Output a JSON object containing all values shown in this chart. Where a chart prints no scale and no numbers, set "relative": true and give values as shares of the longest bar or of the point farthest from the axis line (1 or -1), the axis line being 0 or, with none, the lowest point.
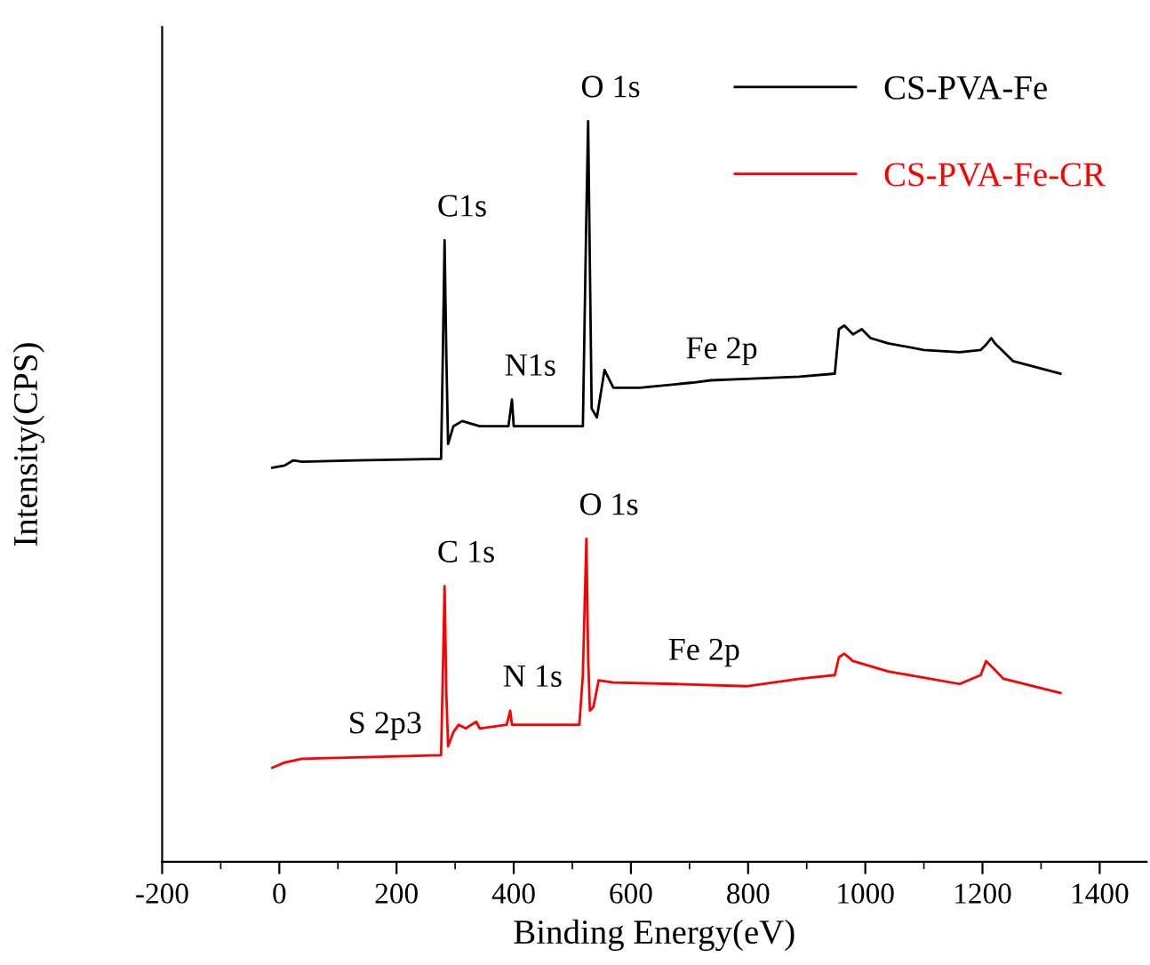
{
  "chart_data": {
    "type": "line",
    "relative": true,
    "xlabel": "Binding Energy(eV)",
    "ylabel": "Intensity(CPS)",
    "xlim": [
      -200,
      1480
    ],
    "xticks": [
      -200,
      0,
      200,
      400,
      600,
      800,
      1000,
      1200,
      1400
    ],
    "legend": "top right",
    "grid": false,
    "tick_labels": "x",
    "series": [
      {
        "name": "CS-PVA-Fe",
        "color": "#000000",
        "x": [
          -12,
          9,
          24,
          39,
          130,
          276,
          279,
          282,
          285,
          288,
          297,
          312,
          342,
          391,
          397,
          400,
          433,
          518,
          524,
          527,
          530,
          533,
          542,
          555,
          570,
          615,
          706,
          736,
          797,
          888,
          948,
          955,
          964,
          979,
          994,
          1009,
          1039,
          1100,
          1161,
          1197,
          1206,
          1215,
          1221,
          1252,
          1333
        ],
        "values": [
          0.532,
          0.535,
          0.542,
          0.54,
          0.542,
          0.544,
          0.683,
          0.839,
          0.683,
          0.564,
          0.588,
          0.595,
          0.588,
          0.588,
          0.624,
          0.588,
          0.588,
          0.588,
          0.875,
          1,
          0.803,
          0.612,
          0.6,
          0.664,
          0.64,
          0.64,
          0.647,
          0.65,
          0.652,
          0.655,
          0.659,
          0.719,
          0.724,
          0.712,
          0.719,
          0.707,
          0.7,
          0.691,
          0.688,
          0.691,
          0.698,
          0.707,
          0.7,
          0.676,
          0.659
        ]
      },
      {
        "name": "CS-PVA-Fe-CR",
        "color": "#ff0000",
        "x": [
          -12,
          9,
          39,
          130,
          276,
          279,
          282,
          285,
          288,
          297,
          306,
          318,
          336,
          342,
          388,
          394,
          397,
          433,
          512,
          518,
          524,
          527,
          530,
          536,
          545,
          570,
          676,
          797,
          888,
          948,
          955,
          964,
          979,
          1039,
          1161,
          1197,
          1206,
          1215,
          1236,
          1333
        ],
        "values": [
          0.127,
          0.134,
          0.139,
          0.141,
          0.144,
          0.252,
          0.372,
          0.228,
          0.156,
          0.175,
          0.185,
          0.18,
          0.189,
          0.18,
          0.185,
          0.204,
          0.185,
          0.185,
          0.185,
          0.252,
          0.436,
          0.276,
          0.204,
          0.209,
          0.245,
          0.242,
          0.24,
          0.237,
          0.247,
          0.252,
          0.276,
          0.281,
          0.271,
          0.257,
          0.24,
          0.252,
          0.271,
          0.264,
          0.247,
          0.228
        ]
      }
    ],
    "annotations": [
      {
        "text": "C1s",
        "x": 282,
        "y": 0.839
      },
      {
        "text": "O 1s",
        "x": 527,
        "y": 1
      },
      {
        "text": "N1s",
        "x": 397,
        "y": 0.624
      },
      {
        "text": "Fe 2p",
        "x": 706,
        "y": 0.647
      },
      {
        "text": "O 1s",
        "x": 524,
        "y": 0.436
      },
      {
        "text": "C 1s",
        "x": 282,
        "y": 0.372
      },
      {
        "text": "N 1s",
        "x": 394,
        "y": 0.204
      },
      {
        "text": "Fe 2p",
        "x": 676,
        "y": 0.24
      },
      {
        "text": "S 2p3",
        "x": 130,
        "y": 0.141
      }
    ]
  }
}
